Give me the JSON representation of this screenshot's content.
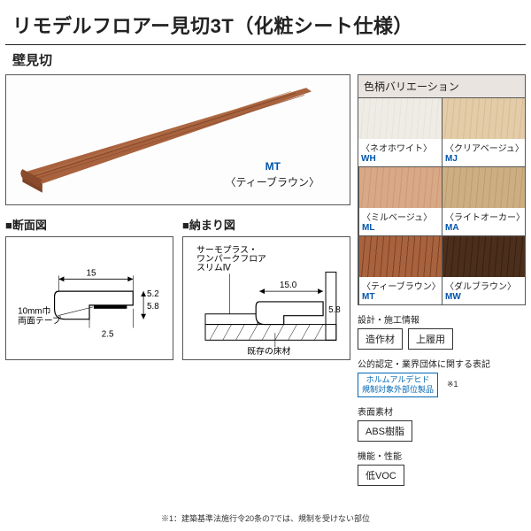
{
  "title": "リモデルフロアー見切3T（化粧シート仕様）",
  "subtitle": "壁見切",
  "product": {
    "baseColor": "#a8623e",
    "grainColor": "#7d4326",
    "highlight": "#c88860",
    "code": "MT",
    "codeColor": "#0055aa",
    "name": "〈ティーブラウン〉"
  },
  "diagrams": {
    "crossSection": {
      "title": "■断面図",
      "dims": {
        "w15": "15",
        "h58": "5.8",
        "h52": "5.2",
        "h25": "2.5",
        "tape": "10mm巾\n両面テープ"
      }
    },
    "fit": {
      "title": "■納まり図",
      "labels": {
        "upper": "サーモプラス・\nワンパークフロア\nスリムⅣ",
        "floor": "既存の床材"
      },
      "dims": {
        "w150": "15.0",
        "h58": "5.8"
      }
    }
  },
  "variations": {
    "title": "色柄バリエーション",
    "items": [
      {
        "name": "〈ネオホワイト〉",
        "code": "WH",
        "color": "#efece6",
        "grain": "#e6e3dc"
      },
      {
        "name": "〈クリアベージュ〉",
        "code": "MJ",
        "color": "#e3cca7",
        "grain": "#d6bd96"
      },
      {
        "name": "〈ミルベージュ〉",
        "code": "ML",
        "color": "#d9a887",
        "grain": "#cc9975"
      },
      {
        "name": "〈ライトオーカー〉",
        "code": "MA",
        "color": "#cdae82",
        "grain": "#bd9c6e"
      },
      {
        "name": "〈ティーブラウン〉",
        "code": "MT",
        "color": "#a8623e",
        "grain": "#7d4326"
      },
      {
        "name": "〈ダルブラウン〉",
        "code": "MW",
        "color": "#4b2e1c",
        "grain": "#38200f"
      }
    ]
  },
  "spec": {
    "sec1": {
      "title": "設計・施工情報",
      "tags": [
        "造作材",
        "上履用"
      ]
    },
    "sec2": {
      "title": "公的認定・業界団体に関する表記",
      "note": "※1",
      "tag": "ホルムアルデヒド\n規制対象外部位製品"
    },
    "sec3": {
      "title": "表面素材",
      "tag": "ABS樹脂"
    },
    "sec4": {
      "title": "機能・性能",
      "tag": "低VOC"
    }
  },
  "footnote": "※1：建築基準法施行令20条の7では、規制を受けない部位"
}
